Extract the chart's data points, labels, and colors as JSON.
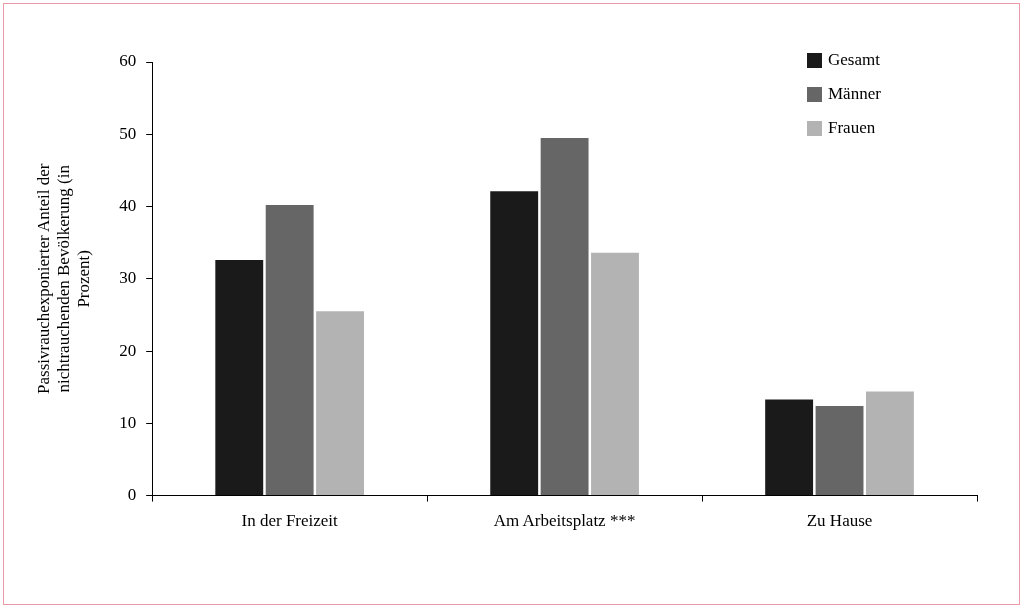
{
  "chart_data": {
    "type": "bar",
    "ylabel": "Passivrauchexponierter Anteil der nichtrauchenden Bevölkerung (in Prozent)",
    "categories": [
      "In der Freizeit",
      "Am Arbeitsplatz ***",
      "Zu Hause"
    ],
    "series": [
      {
        "name": "Gesamt",
        "color": "#1a1a1a",
        "values": [
          32.6,
          42.1,
          13.3
        ]
      },
      {
        "name": "Männer",
        "color": "#666666",
        "values": [
          40.2,
          49.5,
          12.4
        ]
      },
      {
        "name": "Frauen",
        "color": "#b3b3b3",
        "values": [
          25.5,
          33.6,
          14.4
        ]
      }
    ],
    "ylim": [
      0,
      60
    ],
    "yticks": [
      0,
      10,
      20,
      30,
      40,
      50,
      60
    ],
    "legend": "top right"
  }
}
